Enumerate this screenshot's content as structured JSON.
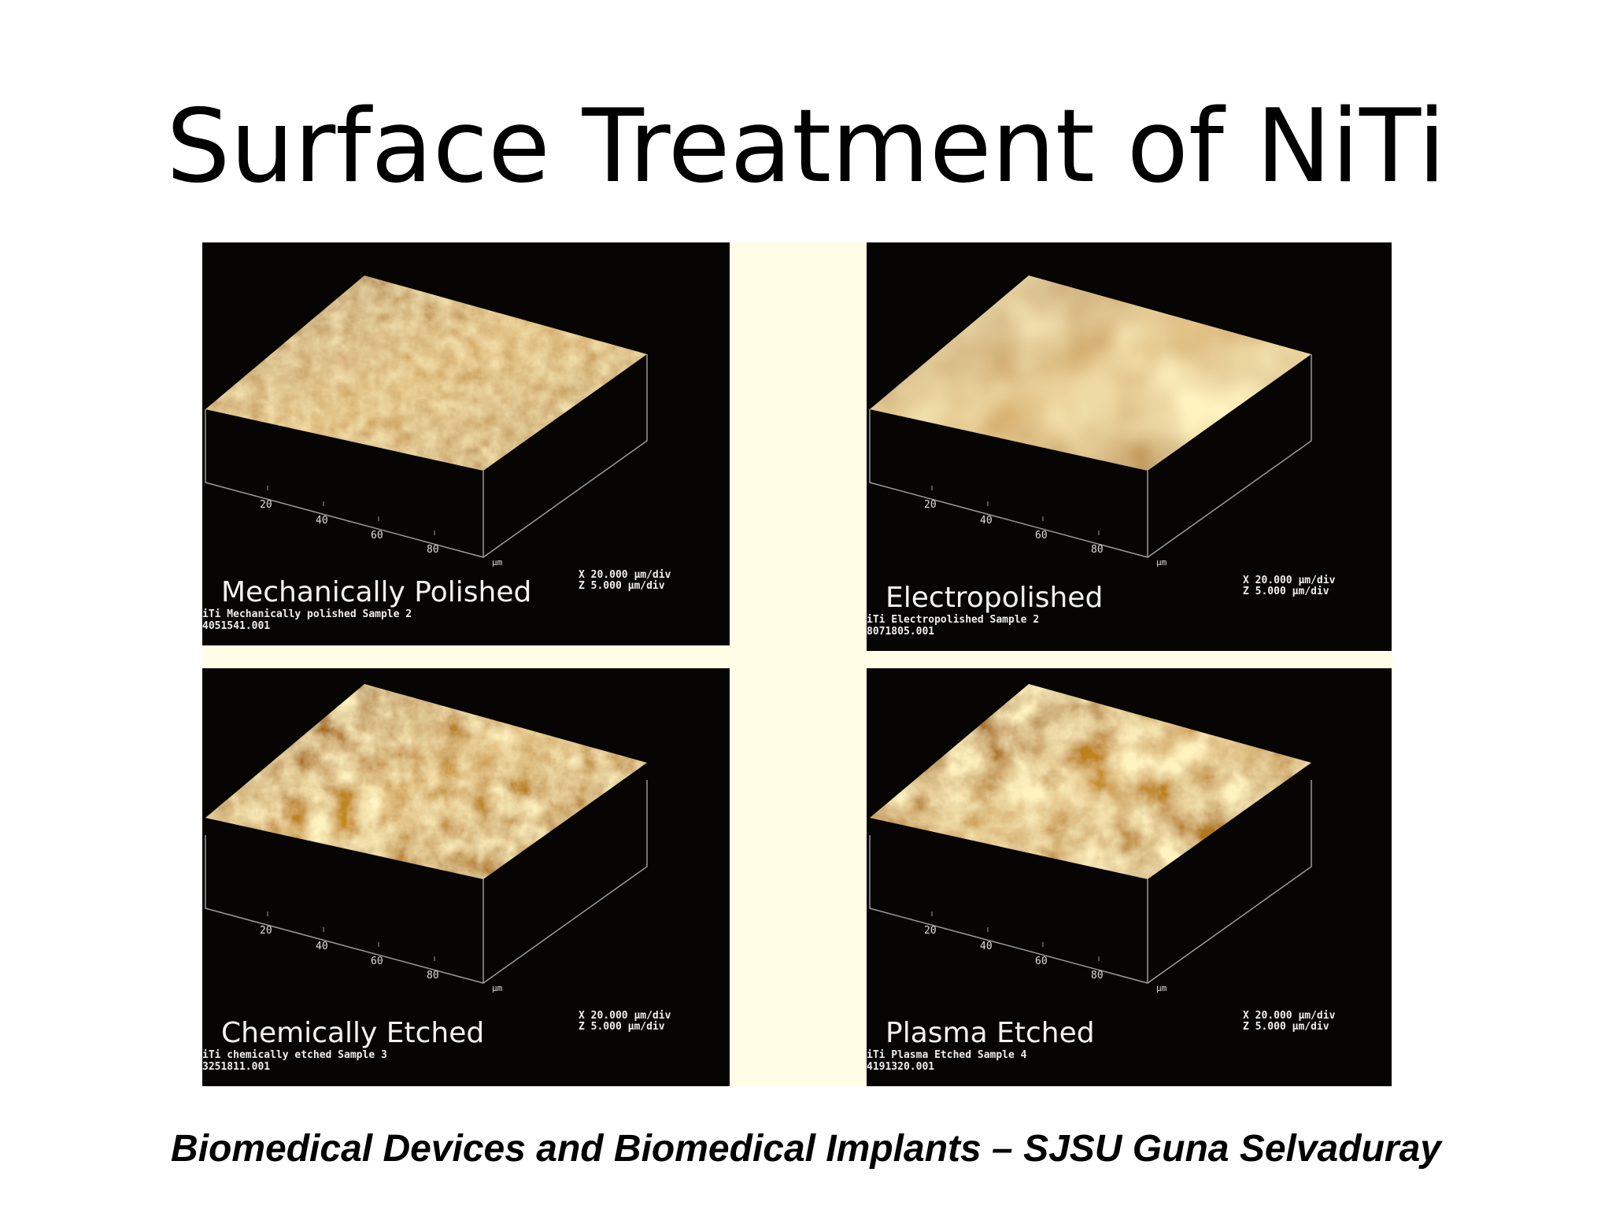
{
  "title": "Surface Treatment of NiTi",
  "panels": [
    {
      "caption": "Mechanically Polished",
      "axis_ticks": [
        20,
        40,
        60,
        80
      ],
      "axis_unit": "µm",
      "x_scale": "X  20.000 µm/div",
      "z_scale": "Z  5.000 µm/div",
      "sample": "iTi Mechanically polished Sample 2",
      "file": "4051541.001"
    },
    {
      "caption": "Electropolished",
      "axis_ticks": [
        20,
        40,
        60,
        80
      ],
      "axis_unit": "µm",
      "x_scale": "X  20.000 µm/div",
      "z_scale": "Z  5.000 µm/div",
      "sample": "iTi Electropolished Sample 2",
      "file": "8071805.001"
    },
    {
      "caption": "Chemically Etched",
      "axis_ticks": [
        20,
        40,
        60,
        80
      ],
      "axis_unit": "µm",
      "x_scale": "X  20.000 µm/div",
      "z_scale": "Z  5.000 µm/div",
      "sample": "iTi chemically etched Sample 3",
      "file": "3251811.001"
    },
    {
      "caption": "Plasma Etched",
      "axis_ticks": [
        20,
        40,
        60,
        80
      ],
      "axis_unit": "µm",
      "x_scale": "X  20.000 µm/div",
      "z_scale": "Z  5.000 µm/div",
      "sample": "iTi Plasma Etched Sample 4",
      "file": "4191320.001"
    }
  ],
  "footer": "Biomedical Devices and Biomedical Implants – SJSU Guna Selvaduray"
}
